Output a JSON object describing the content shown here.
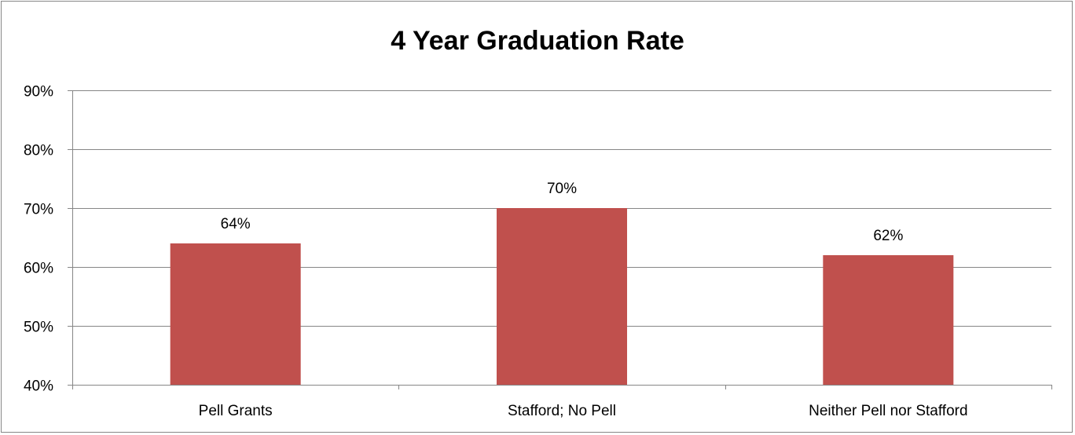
{
  "chart_data": {
    "type": "bar",
    "title": "4 Year Graduation Rate",
    "xlabel": "",
    "ylabel": "",
    "categories": [
      "Pell Grants",
      "Stafford; No Pell",
      "Neither Pell nor Stafford"
    ],
    "values": [
      64,
      70,
      62
    ],
    "data_labels": [
      "64%",
      "70%",
      "62%"
    ],
    "ylim": [
      40,
      90
    ],
    "yticks": [
      40,
      50,
      60,
      70,
      80,
      90
    ],
    "ytick_labels": [
      "40%",
      "50%",
      "60%",
      "70%",
      "80%",
      "90%"
    ],
    "grid": true,
    "legend": "none",
    "colors": {
      "bar": "#C0504D",
      "grid": "#868686",
      "axis": "#868686",
      "text": "#000000"
    }
  }
}
